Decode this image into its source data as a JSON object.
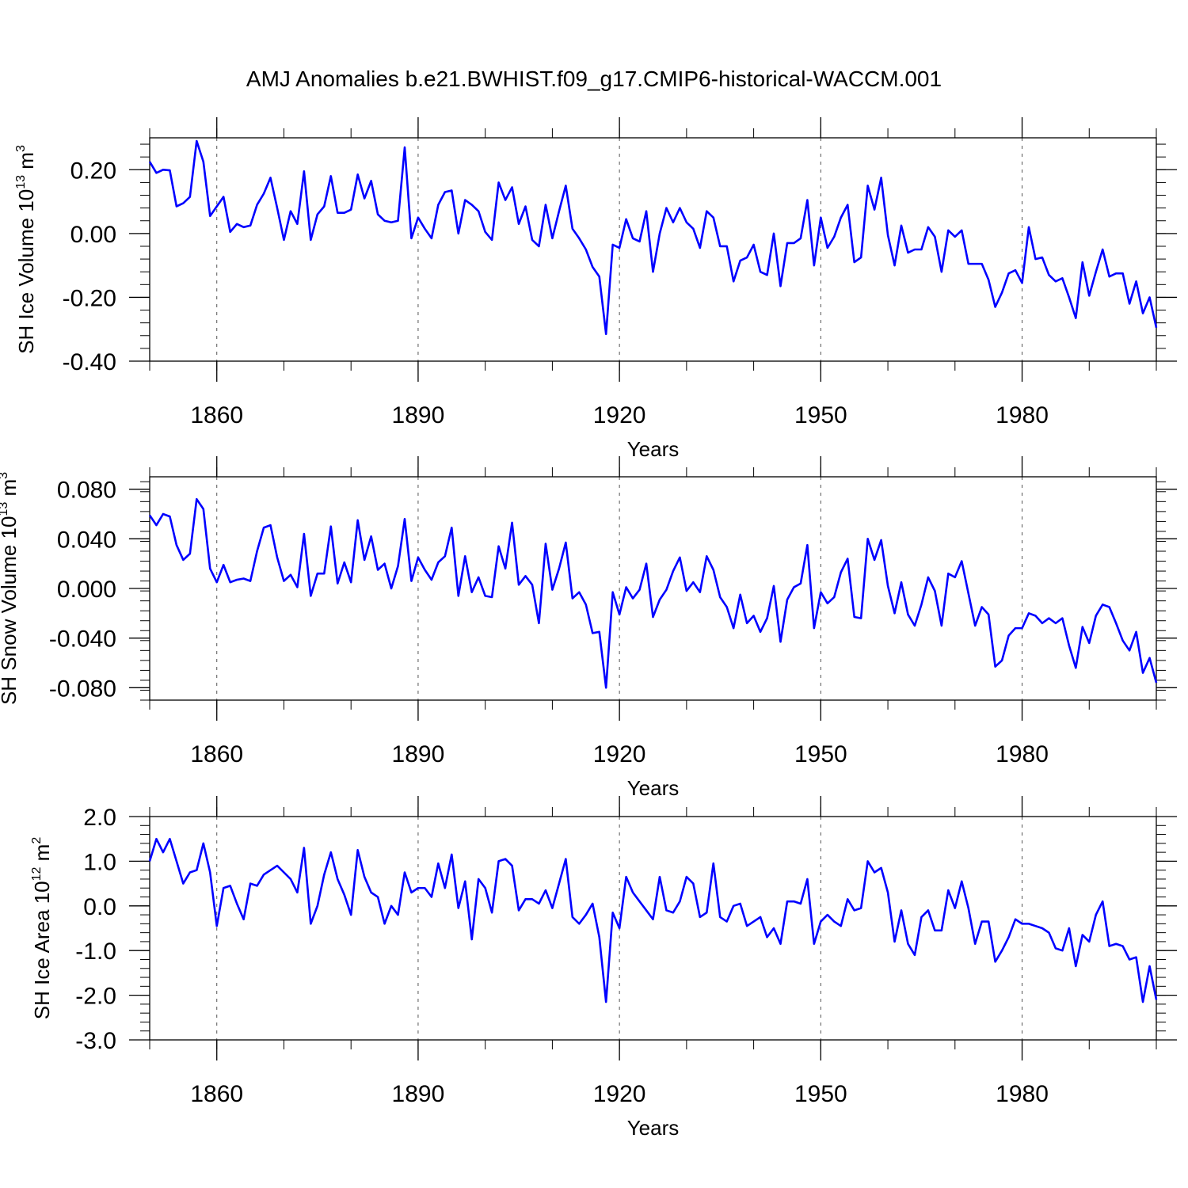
{
  "title": "AMJ Anomalies b.e21.BWHIST.f09_g17.CMIP6-historical-WACCM.001",
  "colors": {
    "line": "#0000ff",
    "axis": "#000000",
    "grid": "#555555"
  },
  "chart_data": [
    {
      "type": "line",
      "ylabel_main": "SH Ice Volume 10",
      "ylabel_exp": "13",
      "ylabel_unit": " m",
      "ylabel_unit_exp": "3",
      "xlabel": "Years",
      "ylim": [
        -0.4,
        0.3
      ],
      "xlim": [
        1850,
        2000
      ],
      "yticks": [
        -0.4,
        -0.2,
        0.0,
        0.2
      ],
      "ytick_labels": [
        "-0.40",
        "-0.20",
        "0.00",
        "0.20"
      ],
      "xticks": [
        1860,
        1890,
        1920,
        1950,
        1980
      ],
      "xtick_labels": [
        "1860",
        "1890",
        "1920",
        "1950",
        "1980"
      ],
      "grid": "dashed vertical lines at major x ticks",
      "x_start": 1850,
      "series": [
        {
          "values": [
            0.225,
            0.19,
            0.2,
            0.198,
            0.085,
            0.095,
            0.115,
            0.29,
            0.225,
            0.055,
            0.085,
            0.115,
            0.005,
            0.03,
            0.02,
            0.025,
            0.09,
            0.125,
            0.175,
            0.08,
            -0.02,
            0.07,
            0.03,
            0.195,
            -0.02,
            0.06,
            0.085,
            0.18,
            0.065,
            0.065,
            0.075,
            0.185,
            0.11,
            0.165,
            0.06,
            0.04,
            0.035,
            0.04,
            0.27,
            -0.015,
            0.05,
            0.015,
            -0.015,
            0.09,
            0.13,
            0.135,
            0.0,
            0.105,
            0.09,
            0.07,
            0.005,
            -0.02,
            0.16,
            0.105,
            0.145,
            0.03,
            0.085,
            -0.02,
            -0.04,
            0.09,
            -0.015,
            0.07,
            0.15,
            0.015,
            -0.015,
            -0.05,
            -0.105,
            -0.135,
            -0.315,
            -0.035,
            -0.045,
            0.045,
            -0.015,
            -0.025,
            0.07,
            -0.12,
            0.0,
            0.08,
            0.035,
            0.08,
            0.035,
            0.015,
            -0.045,
            0.07,
            0.05,
            -0.04,
            -0.04,
            -0.15,
            -0.085,
            -0.075,
            -0.035,
            -0.12,
            -0.13,
            -0.0,
            -0.165,
            -0.03,
            -0.03,
            -0.015,
            0.105,
            -0.1,
            0.05,
            -0.045,
            -0.01,
            0.05,
            0.09,
            -0.09,
            -0.075,
            0.15,
            0.075,
            0.175,
            -0.005,
            -0.1,
            0.025,
            -0.06,
            -0.05,
            -0.05,
            0.02,
            -0.01,
            -0.12,
            0.01,
            -0.01,
            0.01,
            -0.095,
            -0.095,
            -0.095,
            -0.145,
            -0.23,
            -0.185,
            -0.125,
            -0.115,
            -0.155,
            0.02,
            -0.08,
            -0.075,
            -0.13,
            -0.15,
            -0.14,
            -0.2,
            -0.265,
            -0.09,
            -0.195,
            -0.12,
            -0.05,
            -0.135,
            -0.125,
            -0.125,
            -0.22,
            -0.15,
            -0.25,
            -0.2,
            -0.295
          ]
        }
      ]
    },
    {
      "type": "line",
      "ylabel_main": "SH Snow Volume 10",
      "ylabel_exp": "13",
      "ylabel_unit": " m",
      "ylabel_unit_exp": "3",
      "xlabel": "Years",
      "ylim": [
        -0.09,
        0.09
      ],
      "xlim": [
        1850,
        2000
      ],
      "yticks": [
        -0.08,
        -0.04,
        0.0,
        0.04,
        0.08
      ],
      "ytick_labels": [
        "-0.080",
        "-0.040",
        "0.000",
        "0.040",
        "0.080"
      ],
      "xticks": [
        1860,
        1890,
        1920,
        1950,
        1980
      ],
      "xtick_labels": [
        "1860",
        "1890",
        "1920",
        "1950",
        "1980"
      ],
      "grid": "dashed vertical lines at major x ticks",
      "x_start": 1850,
      "series": [
        {
          "values": [
            0.059,
            0.051,
            0.06,
            0.058,
            0.035,
            0.023,
            0.028,
            0.072,
            0.064,
            0.016,
            0.005,
            0.019,
            0.005,
            0.007,
            0.008,
            0.006,
            0.03,
            0.049,
            0.051,
            0.025,
            0.006,
            0.011,
            0.001,
            0.044,
            -0.006,
            0.012,
            0.012,
            0.05,
            0.004,
            0.021,
            0.005,
            0.055,
            0.023,
            0.042,
            0.015,
            0.02,
            0.0,
            0.018,
            0.056,
            0.006,
            0.025,
            0.015,
            0.007,
            0.021,
            0.026,
            0.049,
            -0.006,
            0.026,
            -0.003,
            0.009,
            -0.006,
            -0.007,
            0.034,
            0.016,
            0.053,
            0.003,
            0.01,
            0.003,
            -0.028,
            0.036,
            -0.001,
            0.016,
            0.037,
            -0.008,
            -0.003,
            -0.013,
            -0.036,
            -0.035,
            -0.08,
            -0.003,
            -0.021,
            0.001,
            -0.008,
            -0.001,
            0.02,
            -0.023,
            -0.009,
            -0.001,
            0.014,
            0.025,
            -0.002,
            0.005,
            -0.003,
            0.026,
            0.015,
            -0.007,
            -0.015,
            -0.032,
            -0.005,
            -0.028,
            -0.022,
            -0.035,
            -0.024,
            0.002,
            -0.043,
            -0.009,
            0.001,
            0.004,
            0.035,
            -0.032,
            -0.003,
            -0.012,
            -0.007,
            0.013,
            0.024,
            -0.023,
            -0.024,
            0.04,
            0.023,
            0.039,
            0.002,
            -0.02,
            0.005,
            -0.021,
            -0.03,
            -0.013,
            0.009,
            -0.002,
            -0.03,
            0.012,
            0.009,
            0.022,
            -0.004,
            -0.03,
            -0.015,
            -0.021,
            -0.063,
            -0.058,
            -0.038,
            -0.032,
            -0.032,
            -0.02,
            -0.022,
            -0.028,
            -0.024,
            -0.028,
            -0.024,
            -0.046,
            -0.064,
            -0.031,
            -0.044,
            -0.022,
            -0.013,
            -0.015,
            -0.028,
            -0.042,
            -0.05,
            -0.035,
            -0.068,
            -0.056,
            -0.076
          ]
        }
      ]
    },
    {
      "type": "line",
      "ylabel_main": "SH Ice Area 10",
      "ylabel_exp": "12",
      "ylabel_unit": " m",
      "ylabel_unit_exp": "2",
      "xlabel": "Years",
      "ylim": [
        -3.0,
        2.0
      ],
      "xlim": [
        1850,
        2000
      ],
      "yticks": [
        -3.0,
        -2.0,
        -1.0,
        0.0,
        1.0,
        2.0
      ],
      "ytick_labels": [
        "-3.0",
        "-2.0",
        "-1.0",
        "0.0",
        "1.0",
        "2.0"
      ],
      "xticks": [
        1860,
        1890,
        1920,
        1950,
        1980
      ],
      "xtick_labels": [
        "1860",
        "1890",
        "1920",
        "1950",
        "1980"
      ],
      "grid": "dashed vertical lines at major x ticks",
      "x_start": 1850,
      "series": [
        {
          "values": [
            1.0,
            1.5,
            1.2,
            1.5,
            1.0,
            0.5,
            0.75,
            0.8,
            1.4,
            0.75,
            -0.45,
            0.4,
            0.45,
            0.05,
            -0.3,
            0.5,
            0.45,
            0.7,
            0.8,
            0.9,
            0.75,
            0.6,
            0.3,
            1.3,
            -0.4,
            0.0,
            0.7,
            1.2,
            0.6,
            0.25,
            -0.2,
            1.25,
            0.65,
            0.3,
            0.2,
            -0.4,
            0.0,
            -0.2,
            0.75,
            0.3,
            0.4,
            0.4,
            0.2,
            0.95,
            0.4,
            1.15,
            -0.05,
            0.55,
            -0.75,
            0.6,
            0.4,
            -0.15,
            1.0,
            1.05,
            0.9,
            -0.1,
            0.15,
            0.15,
            0.05,
            0.35,
            -0.05,
            0.5,
            1.05,
            -0.25,
            -0.4,
            -0.2,
            0.05,
            -0.7,
            -2.15,
            -0.15,
            -0.5,
            0.65,
            0.3,
            0.1,
            -0.1,
            -0.3,
            0.65,
            -0.1,
            -0.15,
            0.1,
            0.65,
            0.5,
            -0.25,
            -0.15,
            0.95,
            -0.25,
            -0.35,
            0.0,
            0.05,
            -0.45,
            -0.35,
            -0.25,
            -0.7,
            -0.5,
            -0.85,
            0.1,
            0.1,
            0.05,
            0.6,
            -0.85,
            -0.35,
            -0.2,
            -0.35,
            -0.45,
            0.15,
            -0.1,
            -0.05,
            1.0,
            0.75,
            0.85,
            0.3,
            -0.8,
            -0.1,
            -0.85,
            -1.1,
            -0.25,
            -0.1,
            -0.55,
            -0.55,
            0.35,
            -0.05,
            0.55,
            -0.05,
            -0.85,
            -0.35,
            -0.35,
            -1.25,
            -1.0,
            -0.7,
            -0.3,
            -0.4,
            -0.4,
            -0.45,
            -0.5,
            -0.6,
            -0.95,
            -1.0,
            -0.5,
            -1.35,
            -0.65,
            -0.8,
            -0.2,
            0.1,
            -0.9,
            -0.85,
            -0.9,
            -1.2,
            -1.15,
            -2.15,
            -1.35,
            -2.1
          ]
        }
      ]
    }
  ]
}
